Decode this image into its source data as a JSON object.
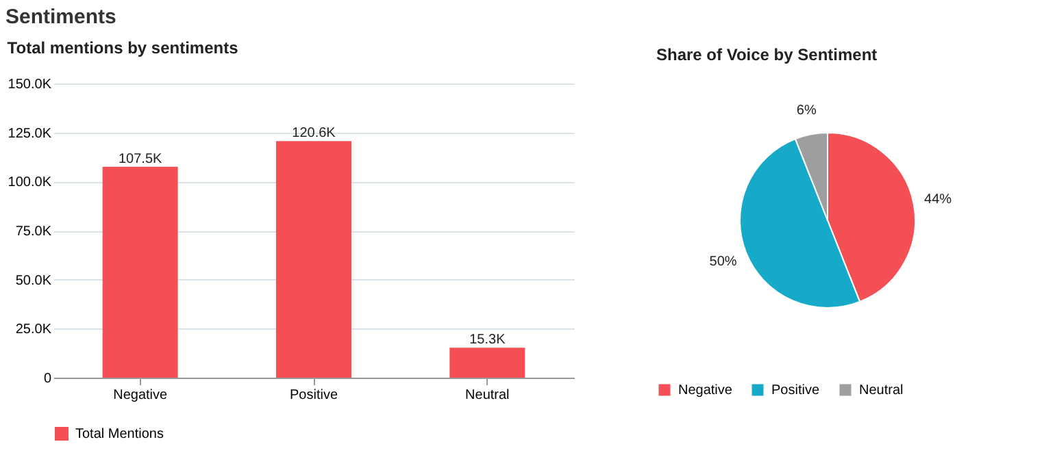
{
  "chart_data": [
    {
      "type": "bar",
      "title": "Total mentions by sentiments",
      "annotations": [
        "Sentiments"
      ],
      "categories": [
        "Negative",
        "Positive",
        "Neutral"
      ],
      "series": [
        {
          "name": "Total Mentions",
          "color": "#f44f55",
          "values": [
            107500,
            120600,
            15300
          ],
          "value_labels": [
            "107.5K",
            "120.6K",
            "15.3K"
          ]
        }
      ],
      "ylim": [
        0,
        150000
      ],
      "yticks": [
        0,
        {
          "value": 25000,
          "label": "25.0K"
        },
        {
          "value": 50000,
          "label": "50.0K"
        },
        {
          "value": 75000,
          "label": "75.0K"
        },
        {
          "value": 100000,
          "label": "100.0K"
        },
        {
          "value": 125000,
          "label": "125.0K"
        },
        {
          "value": 150000,
          "label": "150.0K"
        }
      ],
      "grid": "y",
      "legend": "bottom"
    },
    {
      "type": "pie",
      "title": "Share of Voice by Sentiment",
      "categories": [
        "Negative",
        "Positive",
        "Neutral"
      ],
      "values": [
        44,
        50,
        6
      ],
      "colors": [
        "#f44f55",
        "#17aac8",
        "#9e9e9e"
      ],
      "value_labels": [
        "44%",
        "50%",
        "6%"
      ],
      "legend": "bottom"
    }
  ]
}
